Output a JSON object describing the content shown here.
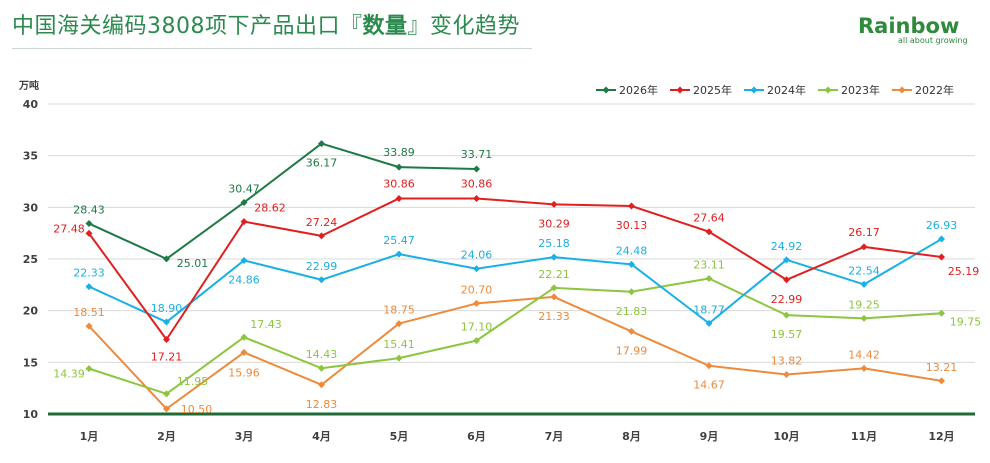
{
  "title_prefix": "中国海关编码3808项下产品出口『",
  "title_bold": "数量",
  "title_suffix": "』变化趋势",
  "logo": {
    "word": "Rainbow",
    "tagline": "all about growing"
  },
  "chart_data": {
    "type": "line",
    "ylabel": "万吨",
    "ylim": [
      10,
      40
    ],
    "yticks": [
      10,
      15,
      20,
      25,
      30,
      35,
      40
    ],
    "grid": true,
    "legend_position": "top-right",
    "categories": [
      "1月",
      "2月",
      "3月",
      "4月",
      "5月",
      "6月",
      "7月",
      "8月",
      "9月",
      "10月",
      "11月",
      "12月"
    ],
    "series": [
      {
        "name": "2026年",
        "color": "#1e7a45",
        "values": [
          28.43,
          25.01,
          30.47,
          36.17,
          33.89,
          33.71,
          null,
          null,
          null,
          null,
          null,
          null
        ]
      },
      {
        "name": "2025年",
        "color": "#e02020",
        "values": [
          27.48,
          17.21,
          28.62,
          27.24,
          30.86,
          30.86,
          30.29,
          30.13,
          27.64,
          22.99,
          26.17,
          25.19
        ]
      },
      {
        "name": "2024年",
        "color": "#1ab0e6",
        "values": [
          22.33,
          18.9,
          24.86,
          22.99,
          25.47,
          24.06,
          25.18,
          24.48,
          18.77,
          24.92,
          22.54,
          26.93
        ]
      },
      {
        "name": "2023年",
        "color": "#8cc63f",
        "values": [
          14.39,
          11.95,
          17.43,
          14.43,
          15.41,
          17.1,
          22.21,
          21.83,
          23.11,
          19.57,
          19.25,
          19.75
        ]
      },
      {
        "name": "2022年",
        "color": "#ed8a3c",
        "values": [
          18.51,
          10.5,
          15.96,
          12.83,
          18.75,
          20.7,
          21.33,
          17.99,
          14.67,
          13.82,
          14.42,
          13.21
        ]
      }
    ]
  }
}
